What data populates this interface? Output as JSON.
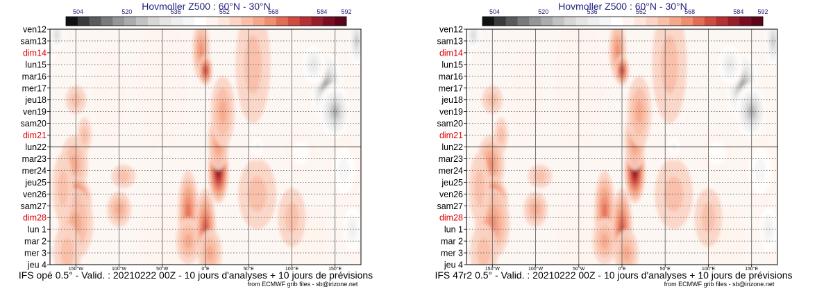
{
  "colorbar": {
    "ticks": [
      504,
      520,
      536,
      552,
      568,
      584,
      592
    ],
    "min": 500,
    "max": 592,
    "colors": [
      "#111111",
      "#3a3a3a",
      "#5a5a5a",
      "#7a7a7a",
      "#969696",
      "#acacac",
      "#c2c2c2",
      "#d6d6d6",
      "#e4e4e4",
      "#eeeeee",
      "#f5f5f5",
      "#ffffff",
      "#fff5f0",
      "#fde6dc",
      "#fbd4c4",
      "#f9bfa8",
      "#f6a88b",
      "#ef8e70",
      "#e36c55",
      "#cf4c40",
      "#b53134",
      "#971d2b",
      "#780d24",
      "#5c0519"
    ]
  },
  "y_days": [
    {
      "label": "ven12",
      "weekend": false
    },
    {
      "label": "sam13",
      "weekend": false
    },
    {
      "label": "dim14",
      "weekend": true
    },
    {
      "label": "lun15",
      "weekend": false
    },
    {
      "label": "mar16",
      "weekend": false
    },
    {
      "label": "mer17",
      "weekend": false
    },
    {
      "label": "jeu18",
      "weekend": false
    },
    {
      "label": "ven19",
      "weekend": false
    },
    {
      "label": "sam20",
      "weekend": false
    },
    {
      "label": "dim21",
      "weekend": true
    },
    {
      "label": "lun22",
      "weekend": false
    },
    {
      "label": "mar23",
      "weekend": false
    },
    {
      "label": "mer24",
      "weekend": false
    },
    {
      "label": "jeu25",
      "weekend": false
    },
    {
      "label": "ven26",
      "weekend": false
    },
    {
      "label": "sam27",
      "weekend": false
    },
    {
      "label": "dim28",
      "weekend": true
    },
    {
      "label": "lun 1",
      "weekend": false
    },
    {
      "label": "mar 2",
      "weekend": false
    },
    {
      "label": "mer 3",
      "weekend": false
    },
    {
      "label": "jeu 4",
      "weekend": false
    }
  ],
  "x_ticks": [
    {
      "lon": -150,
      "label": "150°W"
    },
    {
      "lon": -100,
      "label": "100°W"
    },
    {
      "lon": -50,
      "label": "50°W"
    },
    {
      "lon": 0,
      "label": "0°E"
    },
    {
      "lon": 50,
      "label": "50°E"
    },
    {
      "lon": 100,
      "label": "100°E"
    },
    {
      "lon": 150,
      "label": "150°E"
    }
  ],
  "credit": "from ECMWF grib files - sb@irizone.net",
  "chart_data": [
    {
      "type": "heatmap",
      "title": "Hovmoller Z500 : 60°N - 30°N",
      "footer": "IFS opé 0.5° - Valid. : 20210222 00Z - 10 jours d'analyses + 10 jours de prévisions",
      "xlim": [
        -180,
        180
      ],
      "analysis_forecast_split_day": "lun22",
      "field": [
        {
          "lon": -180,
          "day": 1,
          "w": 12,
          "h": 2.5,
          "v": 536
        },
        {
          "lon": -172,
          "day": 0.5,
          "w": 10,
          "h": 1.5,
          "v": 530
        },
        {
          "lon": -180,
          "day": 19,
          "w": 8,
          "h": 1.5,
          "v": 538
        },
        {
          "lon": -150,
          "day": 6,
          "w": 12,
          "h": 1.2,
          "v": 560
        },
        {
          "lon": -145,
          "day": 3.8,
          "w": 6,
          "h": 0.6,
          "v": 540
        },
        {
          "lon": -140,
          "day": 9,
          "w": 8,
          "h": 1.5,
          "v": 560
        },
        {
          "lon": -152,
          "day": 11.5,
          "w": 16,
          "h": 2.5,
          "v": 564
        },
        {
          "lon": -150,
          "day": 14.7,
          "w": 18,
          "h": 2.2,
          "v": 586
        },
        {
          "lon": -150,
          "day": 16.5,
          "w": 20,
          "h": 3,
          "v": 565
        },
        {
          "lon": -165,
          "day": 13.5,
          "w": 12,
          "h": 3,
          "v": 560
        },
        {
          "lon": -160,
          "day": 19,
          "w": 16,
          "h": 2.5,
          "v": 560
        },
        {
          "lon": -100,
          "day": 15.3,
          "w": 14,
          "h": 1.5,
          "v": 563
        },
        {
          "lon": -95,
          "day": 12.5,
          "w": 14,
          "h": 1,
          "v": 560
        },
        {
          "lon": -110,
          "day": 5.5,
          "w": 20,
          "h": 4,
          "v": 546
        },
        {
          "lon": -50,
          "day": 8.2,
          "w": 16,
          "h": 0.6,
          "v": 538
        },
        {
          "lon": -50,
          "day": 10,
          "w": 14,
          "h": 1,
          "v": 540
        },
        {
          "lon": -50,
          "day": 4.5,
          "w": 30,
          "h": 6,
          "v": 546
        },
        {
          "lon": -50,
          "day": 17.5,
          "w": 28,
          "h": 4,
          "v": 546
        },
        {
          "lon": -20,
          "day": 15.5,
          "w": 12,
          "h": 3.5,
          "v": 570
        },
        {
          "lon": -20,
          "day": 18,
          "w": 14,
          "h": 2,
          "v": 564
        },
        {
          "lon": -5,
          "day": 1.8,
          "w": 10,
          "h": 2.5,
          "v": 568
        },
        {
          "lon": 0,
          "day": 3.5,
          "w": 8,
          "h": 1.3,
          "v": 578
        },
        {
          "lon": 0,
          "day": 17,
          "w": 12,
          "h": 3.5,
          "v": 576
        },
        {
          "lon": 5,
          "day": 19,
          "w": 14,
          "h": 2,
          "v": 564
        },
        {
          "lon": 15,
          "day": 12,
          "w": 12,
          "h": 2.8,
          "v": 586
        },
        {
          "lon": 15,
          "day": 9.5,
          "w": 12,
          "h": 2.5,
          "v": 568
        },
        {
          "lon": 20,
          "day": 7,
          "w": 14,
          "h": 3,
          "v": 562
        },
        {
          "lon": 55,
          "day": 3,
          "w": 20,
          "h": 5,
          "v": 558
        },
        {
          "lon": 60,
          "day": 14,
          "w": 22,
          "h": 3,
          "v": 558
        },
        {
          "lon": 60,
          "day": 10,
          "w": 10,
          "h": 1.2,
          "v": 540
        },
        {
          "lon": 110,
          "day": 10.5,
          "w": 20,
          "h": 2,
          "v": 544
        },
        {
          "lon": 140,
          "day": 5,
          "w": 20,
          "h": 3.5,
          "v": 516
        },
        {
          "lon": 150,
          "day": 7,
          "w": 20,
          "h": 2.5,
          "v": 520
        },
        {
          "lon": 125,
          "day": 3,
          "w": 16,
          "h": 2,
          "v": 532
        },
        {
          "lon": 175,
          "day": 1,
          "w": 10,
          "h": 2.5,
          "v": 526
        },
        {
          "lon": 160,
          "day": 12,
          "w": 20,
          "h": 3,
          "v": 542
        },
        {
          "lon": 120,
          "day": 18,
          "w": 24,
          "h": 3,
          "v": 546
        },
        {
          "lon": 170,
          "day": 17,
          "w": 14,
          "h": 2.5,
          "v": 536
        },
        {
          "lon": 100,
          "day": 16,
          "w": 16,
          "h": 2.5,
          "v": 560
        }
      ]
    },
    {
      "type": "heatmap",
      "title": "Hovmoller Z500 : 60°N - 30°N",
      "footer": "IFS 47r2 0.5° - Valid. : 20210222 00Z - 10 jours d'analyses + 10 jours de prévisions",
      "xlim": [
        -180,
        180
      ],
      "analysis_forecast_split_day": "lun22",
      "field": [
        {
          "lon": -180,
          "day": 1,
          "w": 12,
          "h": 2.5,
          "v": 536
        },
        {
          "lon": -172,
          "day": 0.5,
          "w": 10,
          "h": 1.5,
          "v": 530
        },
        {
          "lon": -180,
          "day": 19,
          "w": 8,
          "h": 1.5,
          "v": 538
        },
        {
          "lon": -150,
          "day": 6,
          "w": 12,
          "h": 1.2,
          "v": 560
        },
        {
          "lon": -145,
          "day": 3.8,
          "w": 6,
          "h": 0.6,
          "v": 540
        },
        {
          "lon": -140,
          "day": 9,
          "w": 8,
          "h": 1.5,
          "v": 560
        },
        {
          "lon": -152,
          "day": 11.5,
          "w": 16,
          "h": 2.5,
          "v": 566
        },
        {
          "lon": -150,
          "day": 14.7,
          "w": 18,
          "h": 2.2,
          "v": 587
        },
        {
          "lon": -150,
          "day": 16.5,
          "w": 20,
          "h": 3,
          "v": 566
        },
        {
          "lon": -165,
          "day": 13.5,
          "w": 12,
          "h": 3,
          "v": 560
        },
        {
          "lon": -160,
          "day": 19,
          "w": 16,
          "h": 2.5,
          "v": 560
        },
        {
          "lon": -100,
          "day": 15.3,
          "w": 14,
          "h": 1.5,
          "v": 564
        },
        {
          "lon": -95,
          "day": 12.5,
          "w": 14,
          "h": 1,
          "v": 560
        },
        {
          "lon": -110,
          "day": 5.5,
          "w": 20,
          "h": 4,
          "v": 546
        },
        {
          "lon": -50,
          "day": 8.2,
          "w": 16,
          "h": 0.6,
          "v": 538
        },
        {
          "lon": -50,
          "day": 10,
          "w": 14,
          "h": 1,
          "v": 540
        },
        {
          "lon": -50,
          "day": 4.5,
          "w": 30,
          "h": 6,
          "v": 546
        },
        {
          "lon": -50,
          "day": 17.5,
          "w": 28,
          "h": 4,
          "v": 546
        },
        {
          "lon": -20,
          "day": 15.5,
          "w": 12,
          "h": 3.5,
          "v": 570
        },
        {
          "lon": -20,
          "day": 18,
          "w": 14,
          "h": 2,
          "v": 564
        },
        {
          "lon": -5,
          "day": 1.8,
          "w": 10,
          "h": 2.5,
          "v": 568
        },
        {
          "lon": 0,
          "day": 3.5,
          "w": 8,
          "h": 1.3,
          "v": 578
        },
        {
          "lon": 0,
          "day": 17,
          "w": 12,
          "h": 3.5,
          "v": 576
        },
        {
          "lon": 5,
          "day": 19,
          "w": 14,
          "h": 2,
          "v": 564
        },
        {
          "lon": 15,
          "day": 12,
          "w": 12,
          "h": 2.8,
          "v": 586
        },
        {
          "lon": 15,
          "day": 9.5,
          "w": 12,
          "h": 2.5,
          "v": 568
        },
        {
          "lon": 20,
          "day": 7,
          "w": 14,
          "h": 3,
          "v": 562
        },
        {
          "lon": 55,
          "day": 3,
          "w": 20,
          "h": 5,
          "v": 558
        },
        {
          "lon": 60,
          "day": 14,
          "w": 22,
          "h": 3,
          "v": 558
        },
        {
          "lon": 60,
          "day": 10,
          "w": 10,
          "h": 1.2,
          "v": 540
        },
        {
          "lon": 110,
          "day": 10.5,
          "w": 20,
          "h": 2,
          "v": 544
        },
        {
          "lon": 140,
          "day": 5,
          "w": 20,
          "h": 3.5,
          "v": 516
        },
        {
          "lon": 150,
          "day": 7,
          "w": 20,
          "h": 2.5,
          "v": 520
        },
        {
          "lon": 125,
          "day": 3,
          "w": 16,
          "h": 2,
          "v": 532
        },
        {
          "lon": 175,
          "day": 1,
          "w": 10,
          "h": 2.5,
          "v": 526
        },
        {
          "lon": 160,
          "day": 12,
          "w": 20,
          "h": 3,
          "v": 542
        },
        {
          "lon": 120,
          "day": 18,
          "w": 24,
          "h": 3,
          "v": 546
        },
        {
          "lon": 170,
          "day": 17,
          "w": 14,
          "h": 2.5,
          "v": 536
        },
        {
          "lon": 100,
          "day": 16,
          "w": 16,
          "h": 2.5,
          "v": 560
        }
      ]
    }
  ]
}
